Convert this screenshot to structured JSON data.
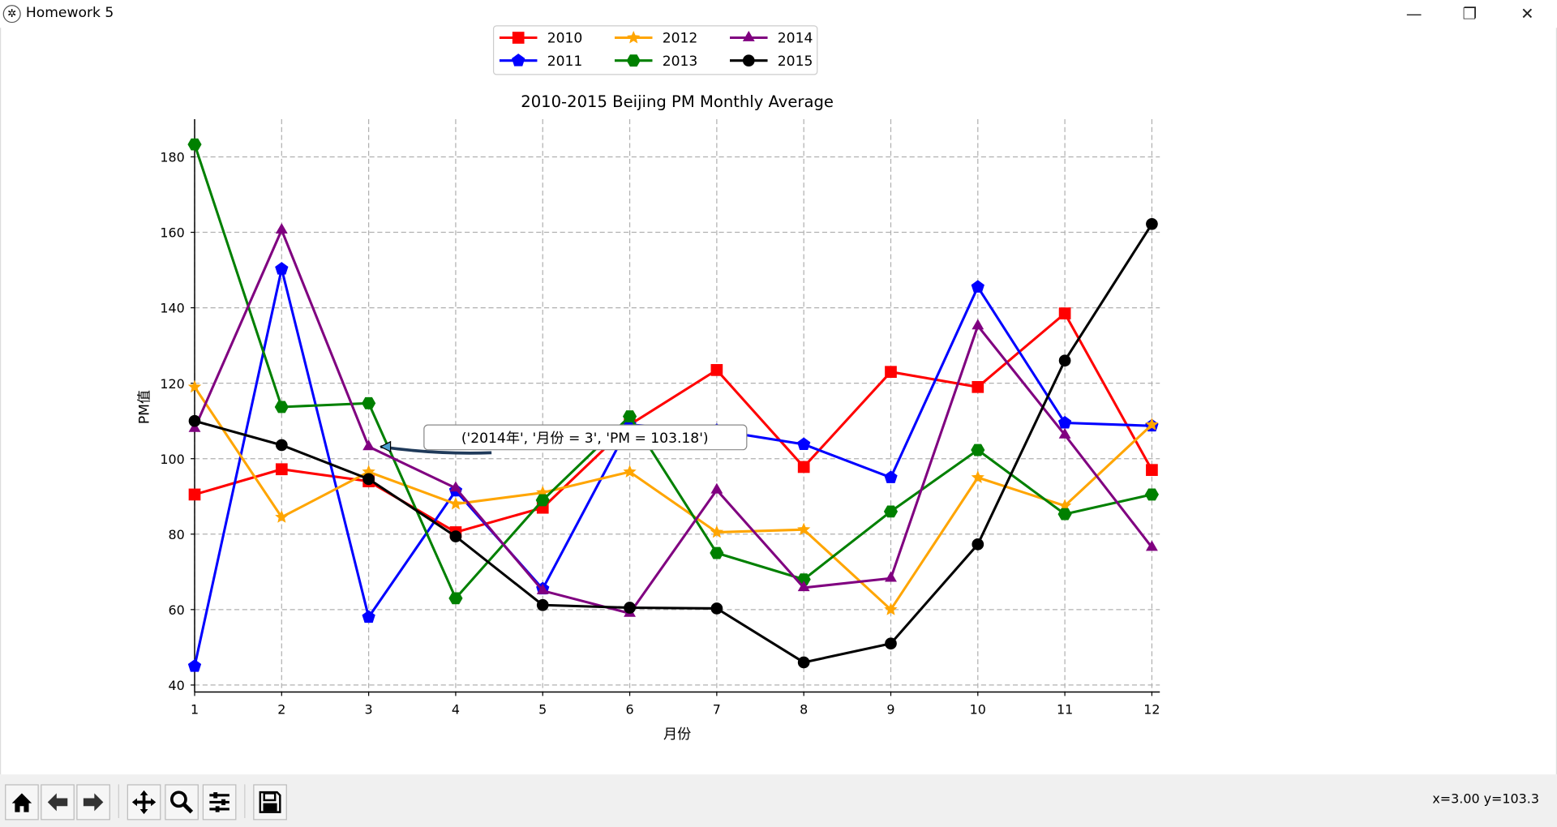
{
  "window": {
    "title": "Homework 5"
  },
  "status": {
    "coords": "x=3.00 y=103.3"
  },
  "toolbar": {
    "buttons": [
      "home",
      "back",
      "forward",
      "pan",
      "zoom",
      "configure-subplots",
      "save"
    ]
  },
  "chart_data": {
    "type": "line",
    "title": "2010-2015 Beijing PM Monthly Average",
    "xlabel": "月份",
    "ylabel": "PM值",
    "x": [
      1,
      2,
      3,
      4,
      5,
      6,
      7,
      8,
      9,
      10,
      11,
      12
    ],
    "xticks": [
      "1",
      "2",
      "3",
      "4",
      "5",
      "6",
      "7",
      "8",
      "9",
      "10",
      "11",
      "12"
    ],
    "yticks": [
      "40",
      "60",
      "80",
      "100",
      "120",
      "140",
      "160",
      "180"
    ],
    "ylim": [
      37.5,
      190
    ],
    "grid": true,
    "legend_placement": "top-center",
    "series": [
      {
        "name": "2010",
        "color": "#ff0000",
        "marker": "square",
        "values": [
          90.5,
          97.2,
          94,
          80.5,
          87,
          109,
          123.5,
          97.8,
          123,
          119,
          138.5,
          97
        ]
      },
      {
        "name": "2011",
        "color": "#0000ff",
        "marker": "pentagon",
        "values": [
          45,
          150.3,
          58,
          91.5,
          65.5,
          109,
          107.5,
          103.8,
          95,
          145.5,
          109.5,
          108.7
        ]
      },
      {
        "name": "2012",
        "color": "#ffa500",
        "marker": "star",
        "values": [
          119,
          84.5,
          96.5,
          88,
          91,
          96.5,
          80.5,
          81.2,
          60,
          95,
          87.5,
          109
        ]
      },
      {
        "name": "2013",
        "color": "#008000",
        "marker": "hexagon",
        "values": [
          183.3,
          113.7,
          114.7,
          63,
          89,
          111.2,
          75,
          68,
          86,
          102.3,
          85.3,
          90.5
        ]
      },
      {
        "name": "2014",
        "color": "#800080",
        "marker": "triangle",
        "values": [
          108,
          160.6,
          103.18,
          92.2,
          65,
          59,
          91.7,
          65.8,
          68.3,
          135.2,
          106.3,
          76.5
        ]
      },
      {
        "name": "2015",
        "color": "#000000",
        "marker": "circle",
        "values": [
          110,
          103.6,
          94.6,
          79.4,
          61.2,
          60.5,
          60.3,
          46,
          51,
          77.3,
          126,
          162.2
        ]
      }
    ],
    "annotation": {
      "text": "('2014年', '月份 = 3', 'PM = 103.18')",
      "x": 3,
      "y": 103.18
    }
  }
}
